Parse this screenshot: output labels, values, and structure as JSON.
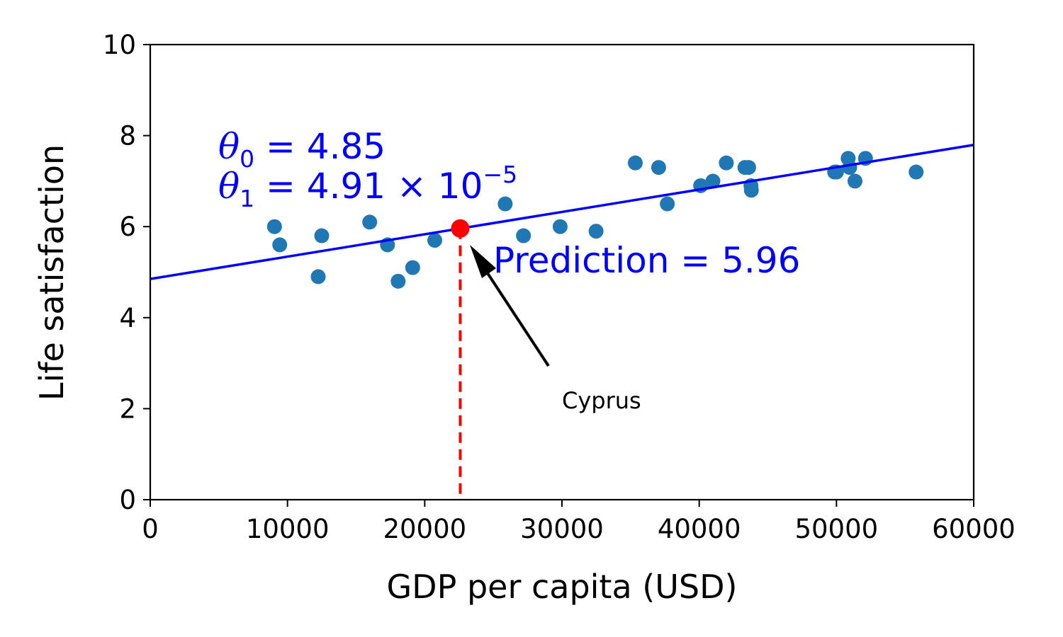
{
  "chart_data": {
    "type": "scatter",
    "xlabel": "GDP per capita (USD)",
    "ylabel": "Life satisfaction",
    "xlim": [
      0,
      60000
    ],
    "ylim": [
      0,
      10
    ],
    "x_ticks": [
      0,
      10000,
      20000,
      30000,
      40000,
      50000,
      60000
    ],
    "y_ticks": [
      0,
      2,
      4,
      6,
      8,
      10
    ],
    "x_tick_labels": [
      "0",
      "10000",
      "20000",
      "30000",
      "40000",
      "50000",
      "60000"
    ],
    "y_tick_labels": [
      "0",
      "2",
      "4",
      "6",
      "8",
      "10"
    ],
    "grid": false,
    "colors": {
      "points": "#1f77b4",
      "fit_line": "#0000ff",
      "prediction": "#ff0000",
      "annotation_text": "#0000ff",
      "arrow": "#000000"
    },
    "points": [
      {
        "x": 9054,
        "y": 6.0
      },
      {
        "x": 9437,
        "y": 5.6
      },
      {
        "x": 12240,
        "y": 4.9
      },
      {
        "x": 12495,
        "y": 5.8
      },
      {
        "x": 15991,
        "y": 6.1
      },
      {
        "x": 17288,
        "y": 5.6
      },
      {
        "x": 18064,
        "y": 4.8
      },
      {
        "x": 19121,
        "y": 5.1
      },
      {
        "x": 20732,
        "y": 5.7
      },
      {
        "x": 25864,
        "y": 6.5
      },
      {
        "x": 27195,
        "y": 5.8
      },
      {
        "x": 29866,
        "y": 6.0
      },
      {
        "x": 32485,
        "y": 5.9
      },
      {
        "x": 35343,
        "y": 7.4
      },
      {
        "x": 37044,
        "y": 7.3
      },
      {
        "x": 37675,
        "y": 6.5
      },
      {
        "x": 40106,
        "y": 6.9
      },
      {
        "x": 40996,
        "y": 7.0
      },
      {
        "x": 41973,
        "y": 7.4
      },
      {
        "x": 43331,
        "y": 7.3
      },
      {
        "x": 43603,
        "y": 7.3
      },
      {
        "x": 43770,
        "y": 6.9
      },
      {
        "x": 43800,
        "y": 6.8
      },
      {
        "x": 49866,
        "y": 7.2
      },
      {
        "x": 50000,
        "y": 7.2
      },
      {
        "x": 50854,
        "y": 7.5
      },
      {
        "x": 50962,
        "y": 7.3
      },
      {
        "x": 51350,
        "y": 7.0
      },
      {
        "x": 52114,
        "y": 7.5
      },
      {
        "x": 55805,
        "y": 7.2
      }
    ],
    "fit_line": {
      "theta0": 4.85,
      "theta1": 4.91e-05
    },
    "prediction_point": {
      "x": 22587,
      "y": 5.96
    },
    "annotations": {
      "theta0": {
        "symbol": "θ",
        "sub": "0",
        "text": " = 4.85"
      },
      "theta1": {
        "symbol": "θ",
        "sub": "1",
        "text": " = 4.91 × 10",
        "sup": "−5"
      },
      "prediction": "Prediction = 5.96",
      "arrow_label": "Cyprus"
    }
  }
}
